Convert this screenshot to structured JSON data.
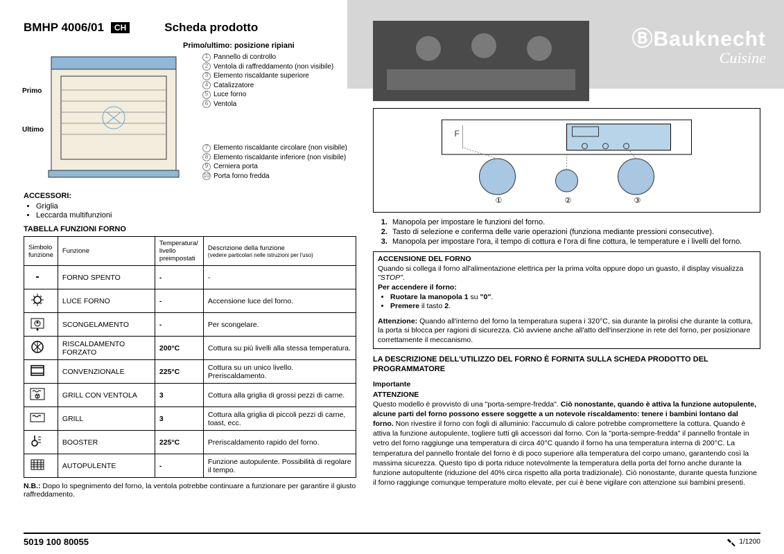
{
  "header": {
    "model": "BMHP 4006/01",
    "ch": "CH",
    "scheda": "Scheda prodotto",
    "primo_ultimo": "Primo/ultimo: posizione ripiani",
    "primo": "Primo",
    "ultimo": "Ultimo"
  },
  "brand": {
    "name": "Bauknecht",
    "sub": "Cuisine"
  },
  "legend_top": [
    "Pannello di controllo",
    "Ventola di raffreddamento (non visibile)",
    "Elemento riscaldante superiore",
    "Catalizzatore",
    "Luce forno",
    "Ventola"
  ],
  "legend_bottom": [
    "Elemento riscaldante circolare (non visibile)",
    "Elemento riscaldante inferiore (non visibile)",
    "Cerniera porta",
    "Porta forno fredda"
  ],
  "accessori": {
    "head": "ACCESSORI:",
    "items": [
      "Griglia",
      "Leccarda multifunzioni"
    ]
  },
  "tabella_head": "TABELLA FUNZIONI FORNO",
  "table": {
    "cols": {
      "sym": "Simbolo funzione",
      "func": "Funzione",
      "temp": "Temperatura/ livello preimpostati",
      "desc": "Descrizione della funzione",
      "desc_sub": "(vedere particolari nelle istruzioni per l'uso)"
    },
    "rows": [
      {
        "func": "FORNO SPENTO",
        "temp": "-",
        "desc": "-"
      },
      {
        "func": "LUCE FORNO",
        "temp": "-",
        "desc": "Accensione luce del forno."
      },
      {
        "func": "SCONGELAMENTO",
        "temp": "-",
        "desc": "Per scongelare."
      },
      {
        "func": "RISCALDAMENTO FORZATO",
        "temp": "200°C",
        "desc": "Cottura su più livelli alla stessa temperatura."
      },
      {
        "func": "CONVENZIONALE",
        "temp": "225°C",
        "desc": "Cottura su un unico livello. Preriscaldamento."
      },
      {
        "func": "GRILL CON VENTOLA",
        "temp": "3",
        "desc": "Cottura alla griglia di grossi pezzi di carne."
      },
      {
        "func": "GRILL",
        "temp": "3",
        "desc": "Cottura alla griglia di piccoli pezzi di carne, toast, ecc."
      },
      {
        "func": "BOOSTER",
        "temp": "225°C",
        "desc": "Preriscaldamento rapido del forno."
      },
      {
        "func": "AUTOPULENTE",
        "temp": "-",
        "desc": "Funzione autopulente. Possibilità di regolare il tempo."
      }
    ]
  },
  "nb": {
    "label": "N.B.:",
    "text": " Dopo lo spegnimento del forno, la ventola potrebbe continuare a funzionare per garantire il giusto raffreddamento."
  },
  "knobs": {
    "items": [
      "Manopola per impostare le funzioni del forno.",
      "Tasto di selezione e conferma delle varie operazioni (funziona mediante pressioni consecutive).",
      "Manopola per impostare l'ora, il tempo di cottura e l'ora di fine cottura, le temperature e i livelli del forno."
    ]
  },
  "accensione": {
    "head": "ACCENSIONE DEL FORNO",
    "p1a": "Quando si collega il forno all'alimentazione elettrica per la prima volta oppure dopo un guasto, il display visualizza ",
    "p1b": "\"STOP\"",
    "p1c": ".",
    "p2": "Per accendere il forno:",
    "b1a": "Ruotare la manopola 1",
    "b1b": " su ",
    "b1c": "\"0\"",
    "b1d": ".",
    "b2a": "Premere",
    "b2b": " il tasto ",
    "b2c": "2",
    "b2d": ".",
    "att_label": "Attenzione:",
    "att": " Quando all'interno del forno la temperatura supera i 320°C, sia durante la pirolisi che durante la cottura, la porta si blocca per ragioni di sicurezza. Ciò avviene anche all'atto dell'inserzione in rete del forno, per posizionare correttamente il meccanismo."
  },
  "desc_head": "LA DESCRIZIONE DELL'UTILIZZO DEL FORNO È FORNITA SULLA SCHEDA PRODOTTO DEL PROGRAMMATORE",
  "importante": {
    "h1": "Importante",
    "h2": "ATTENZIONE",
    "t1": "Questo modello è provvisto di una \"porta-sempre-fredda\". ",
    "b1": "Ciò nonostante, quando è attiva la funzione autopulente, alcune parti del forno possono essere soggette a un notevole riscaldamento: tenere i bambini lontano dal forno.",
    "t2": " Non rivestire il forno con fogli di alluminio: l'accumulo di calore potrebbe compromettere la cottura. Quando è attiva la funzione autopulente, togliere tutti gli accessori dal forno. Con la \"porta-sempre-fredda\" il pannello frontale in vetro del forno raggiunge una temperatura di circa 40°C quando il forno ha una temperatura interna di 200°C. La temperatura del pannello frontale del forno è di poco superiore alla temperatura del corpo umano, garantendo così la massima sicurezza. Questo tipo di porta riduce notevolmente la temperatura della porta del forno anche durante la funzione autopultente (riduzione del 40% circa rispetto alla porta tradizionale). Ciò nonostante, durante questa funzione il forno raggiunge comunque temperature molto elevate, per cui è bene vigilare con attenzione sui bambini presenti."
  },
  "footer": {
    "code": "5019 100 80055",
    "page": "1/1200"
  },
  "colors": {
    "brand_bg": "#d6d6d6",
    "diagram_blue": "#8fb8d9",
    "diagram_cream": "#f2eddc",
    "knob_blue": "#a7c7e2",
    "display_blue": "#b8d4e8"
  }
}
